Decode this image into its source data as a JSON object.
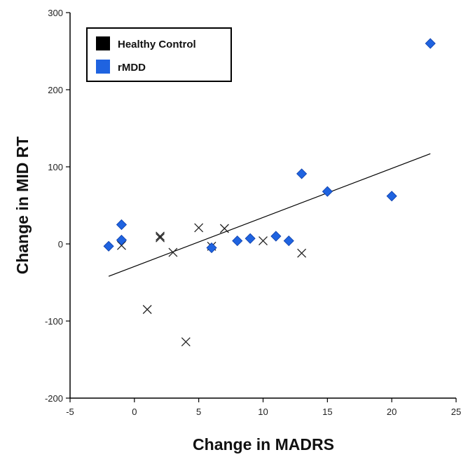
{
  "chart_data": {
    "type": "scatter",
    "xlabel": "Change in MADRS",
    "ylabel": "Change in MID RT",
    "xlim": [
      -5,
      25
    ],
    "ylim": [
      -200,
      300
    ],
    "x_ticks": [
      "-5",
      "0",
      "5",
      "10",
      "15",
      "20",
      "25"
    ],
    "y_ticks": [
      "-200",
      "-100",
      "0",
      "100",
      "200",
      "300"
    ],
    "grid": false,
    "legend_position": "top-left",
    "series": [
      {
        "name": "Healthy Control",
        "marker": "x",
        "legend_color": "#000000",
        "color": "#222222",
        "points": [
          [
            -1,
            -2
          ],
          [
            1,
            -85
          ],
          [
            2,
            8
          ],
          [
            2,
            10
          ],
          [
            3,
            -11
          ],
          [
            4,
            -127
          ],
          [
            5,
            21
          ],
          [
            6,
            -3
          ],
          [
            7,
            20
          ],
          [
            10,
            4
          ],
          [
            13,
            -12
          ]
        ]
      },
      {
        "name": "rMDD",
        "marker": "diamond",
        "color": "#1f63e0",
        "points": [
          [
            -2,
            -3
          ],
          [
            -1,
            5
          ],
          [
            -1,
            25
          ],
          [
            6,
            -5
          ],
          [
            8,
            4
          ],
          [
            9,
            7
          ],
          [
            11,
            10
          ],
          [
            12,
            4
          ],
          [
            13,
            91
          ],
          [
            15,
            68
          ],
          [
            20,
            62
          ],
          [
            23,
            260
          ]
        ]
      }
    ],
    "trendline": {
      "x": [
        -2,
        23
      ],
      "y": [
        -42,
        117
      ],
      "color": "#000000"
    }
  }
}
